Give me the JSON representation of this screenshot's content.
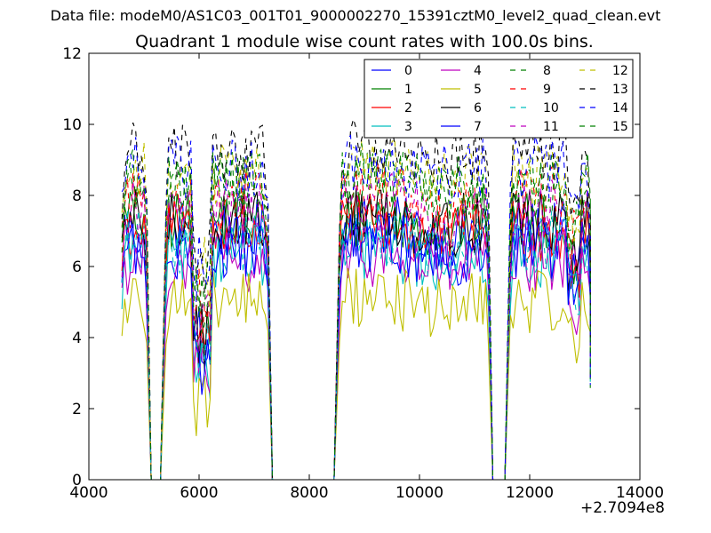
{
  "suptitle": "Data file: modeM0/AS1C03_001T01_9000002270_15391cztM0_level2_quad_clean.evt",
  "chart_data": {
    "type": "line",
    "title": "Quadrant 1 module wise count rates with 100.0s bins.",
    "xlabel": "",
    "ylabel": "",
    "x_offset_label": "+2.7094e8",
    "xlim": [
      4000,
      14000
    ],
    "ylim": [
      0,
      12
    ],
    "xticks": [
      "4000",
      "6000",
      "8000",
      "10000",
      "12000",
      "14000"
    ],
    "yticks": [
      "0",
      "2",
      "4",
      "6",
      "8",
      "10",
      "12"
    ],
    "grid": false,
    "legend_position": "top-right",
    "legend_columns": 4,
    "segments": [
      {
        "x_start": 4600,
        "x_end": 5050
      },
      {
        "x_start": 5400,
        "x_end": 7250
      },
      {
        "x_start": 8550,
        "x_end": 11250
      },
      {
        "x_start": 11650,
        "x_end": 13100
      }
    ],
    "gap_floor": [
      4950,
      8500,
      11550
    ],
    "series": [
      {
        "name": "0",
        "color": "#0000ff",
        "dashed": false,
        "level": 7.0
      },
      {
        "name": "1",
        "color": "#008000",
        "dashed": false,
        "level": 7.3
      },
      {
        "name": "2",
        "color": "#ff0000",
        "dashed": false,
        "level": 7.0
      },
      {
        "name": "3",
        "color": "#00bfbf",
        "dashed": false,
        "level": 6.3
      },
      {
        "name": "4",
        "color": "#bf00bf",
        "dashed": false,
        "level": 6.1
      },
      {
        "name": "5",
        "color": "#bfbf00",
        "dashed": false,
        "level": 5.0
      },
      {
        "name": "6",
        "color": "#000000",
        "dashed": false,
        "level": 7.3
      },
      {
        "name": "7",
        "color": "#0000ff",
        "dashed": false,
        "level": 6.5
      },
      {
        "name": "8",
        "color": "#008000",
        "dashed": true,
        "level": 8.2
      },
      {
        "name": "9",
        "color": "#ff0000",
        "dashed": true,
        "level": 7.9
      },
      {
        "name": "10",
        "color": "#00bfbf",
        "dashed": true,
        "level": 6.7
      },
      {
        "name": "11",
        "color": "#bf00bf",
        "dashed": true,
        "level": 7.6
      },
      {
        "name": "12",
        "color": "#bfbf00",
        "dashed": true,
        "level": 8.6
      },
      {
        "name": "13",
        "color": "#000000",
        "dashed": true,
        "level": 9.2
      },
      {
        "name": "14",
        "color": "#0000ff",
        "dashed": true,
        "level": 8.8
      },
      {
        "name": "15",
        "color": "#008000",
        "dashed": true,
        "level": 8.4
      }
    ]
  }
}
